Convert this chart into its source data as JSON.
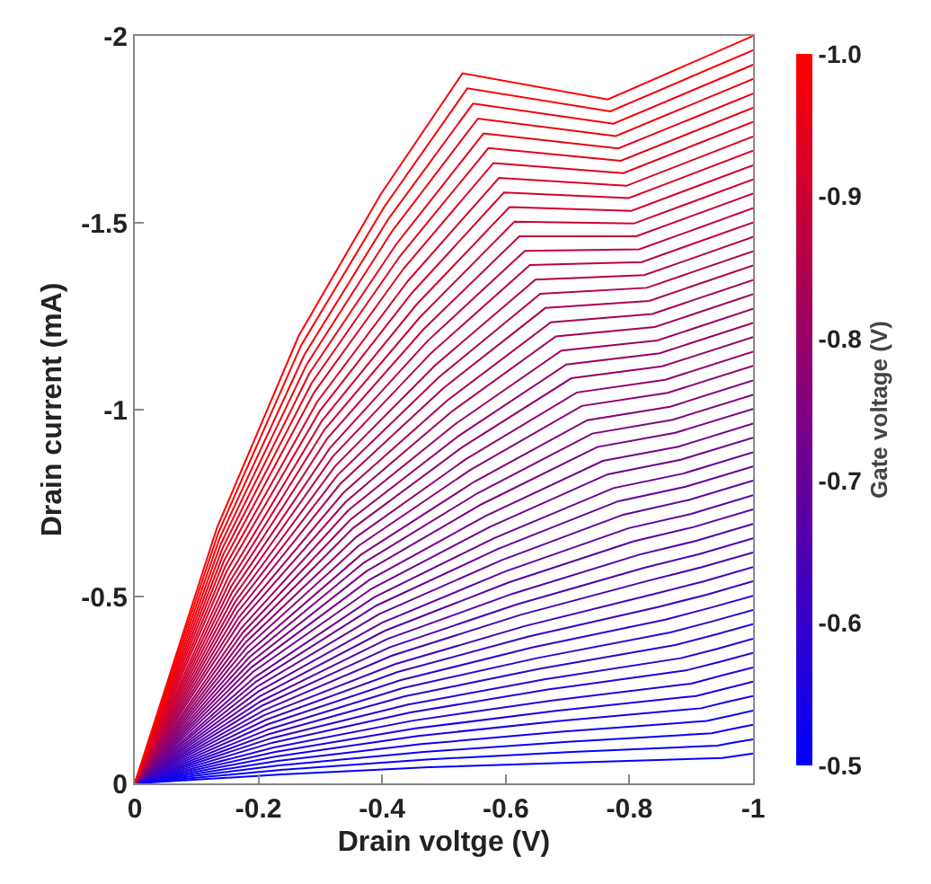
{
  "chart_data": {
    "type": "line",
    "xlabel": "Drain voltge (V)",
    "ylabel": "Drain current (mA)",
    "clabel": "Gate voltage (V)",
    "xlim": [
      0,
      -1
    ],
    "xticks": [
      0,
      -0.2,
      -0.4,
      -0.6,
      -0.8,
      -1
    ],
    "ylim": [
      0,
      -2
    ],
    "yticks": [
      0,
      -0.5,
      -1,
      -1.5,
      -2
    ],
    "marker": "none",
    "line_style": "solid",
    "clim": [
      -0.5,
      -1.0
    ],
    "cticks": [
      {
        "value": -1.0,
        "label": "-1.0"
      },
      {
        "value": -0.9,
        "label": "-0.9"
      },
      {
        "value": -0.8,
        "label": "-0.8"
      },
      {
        "value": -0.7,
        "label": "-0.7"
      },
      {
        "value": -0.6,
        "label": "-0.6"
      },
      {
        "value": -0.5,
        "label": "-0.5"
      }
    ],
    "series": [
      {
        "color": "#0000ff",
        "x": [
          0,
          -0.238,
          -0.475,
          -0.713,
          -0.95,
          -0.975,
          -1
        ],
        "values": [
          0,
          -0.024,
          -0.043,
          -0.056,
          -0.068,
          -0.074,
          -0.08
        ]
      },
      {
        "color": "#0500fa",
        "x": [
          0,
          -0.236,
          -0.471,
          -0.707,
          -0.942,
          -0.971,
          -1
        ],
        "values": [
          0,
          -0.036,
          -0.064,
          -0.084,
          -0.101,
          -0.11,
          -0.118
        ]
      },
      {
        "color": "#0a00f5",
        "x": [
          0,
          -0.233,
          -0.467,
          -0.7,
          -0.933,
          -0.967,
          -1
        ],
        "values": [
          0,
          -0.048,
          -0.084,
          -0.111,
          -0.134,
          -0.146,
          -0.157
        ]
      },
      {
        "color": "#0f00f0",
        "x": [
          0,
          -0.231,
          -0.463,
          -0.694,
          -0.925,
          -0.963,
          -1
        ],
        "values": [
          0,
          -0.06,
          -0.105,
          -0.139,
          -0.167,
          -0.181,
          -0.195
        ]
      },
      {
        "color": "#1400eb",
        "x": [
          0,
          -0.229,
          -0.458,
          -0.687,
          -0.916,
          -0.958,
          -1
        ],
        "values": [
          0,
          -0.072,
          -0.127,
          -0.167,
          -0.201,
          -0.218,
          -0.234
        ]
      },
      {
        "color": "#1a00e5",
        "x": [
          0,
          -0.227,
          -0.454,
          -0.681,
          -0.908,
          -0.954,
          -1
        ],
        "values": [
          0,
          -0.084,
          -0.147,
          -0.194,
          -0.234,
          -0.253,
          -0.272
        ]
      },
      {
        "color": "#1f00e0",
        "x": [
          0,
          -0.225,
          -0.45,
          -0.675,
          -0.9,
          -0.95,
          -1
        ],
        "values": [
          0,
          -0.096,
          -0.168,
          -0.222,
          -0.267,
          -0.289,
          -0.31
        ]
      },
      {
        "color": "#2400db",
        "x": [
          0,
          -0.223,
          -0.446,
          -0.668,
          -0.891,
          -0.946,
          -1
        ],
        "values": [
          0,
          -0.109,
          -0.19,
          -0.251,
          -0.302,
          -0.325,
          -0.349
        ]
      },
      {
        "color": "#2900d6",
        "x": [
          0,
          -0.221,
          -0.442,
          -0.662,
          -0.883,
          -0.942,
          -1
        ],
        "values": [
          0,
          -0.121,
          -0.211,
          -0.278,
          -0.335,
          -0.36,
          -0.387
        ]
      },
      {
        "color": "#2e00d1",
        "x": [
          0,
          -0.219,
          -0.437,
          -0.656,
          -0.874,
          -0.937,
          -1
        ],
        "values": [
          0,
          -0.133,
          -0.233,
          -0.307,
          -0.37,
          -0.397,
          -0.426
        ]
      },
      {
        "color": "#3300cc",
        "x": [
          0,
          -0.217,
          -0.433,
          -0.65,
          -0.866,
          -0.933,
          -1
        ],
        "values": [
          0,
          -0.145,
          -0.255,
          -0.335,
          -0.404,
          -0.433,
          -0.464
        ]
      },
      {
        "color": "#3800c7",
        "x": [
          0,
          -0.215,
          -0.429,
          -0.644,
          -0.858,
          -0.929,
          -1
        ],
        "values": [
          0,
          -0.158,
          -0.276,
          -0.364,
          -0.438,
          -0.469,
          -0.502
        ]
      },
      {
        "color": "#3d00c2",
        "x": [
          0,
          -0.212,
          -0.425,
          -0.637,
          -0.849,
          -0.925,
          -1
        ],
        "values": [
          0,
          -0.17,
          -0.298,
          -0.393,
          -0.473,
          -0.505,
          -0.541
        ]
      },
      {
        "color": "#4200bd",
        "x": [
          0,
          -0.21,
          -0.421,
          -0.631,
          -0.841,
          -0.921,
          -1
        ],
        "values": [
          0,
          -0.183,
          -0.319,
          -0.421,
          -0.507,
          -0.541,
          -0.579
        ]
      },
      {
        "color": "#4700b8",
        "x": [
          0,
          -0.208,
          -0.416,
          -0.624,
          -0.832,
          -0.916,
          -1
        ],
        "values": [
          0,
          -0.195,
          -0.342,
          -0.451,
          -0.543,
          -0.578,
          -0.618
        ]
      },
      {
        "color": "#4d00b2",
        "x": [
          0,
          -0.206,
          -0.412,
          -0.618,
          -0.824,
          -0.912,
          -1
        ],
        "values": [
          0,
          -0.208,
          -0.364,
          -0.479,
          -0.577,
          -0.613,
          -0.656
        ]
      },
      {
        "color": "#5200ad",
        "x": [
          0,
          -0.204,
          -0.408,
          -0.612,
          -0.816,
          -0.908,
          -1
        ],
        "values": [
          0,
          -0.22,
          -0.386,
          -0.508,
          -0.612,
          -0.649,
          -0.694
        ]
      },
      {
        "color": "#5700a8",
        "x": [
          0,
          -0.202,
          -0.404,
          -0.605,
          -0.807,
          -0.904,
          -1
        ],
        "values": [
          0,
          -0.233,
          -0.408,
          -0.538,
          -0.648,
          -0.686,
          -0.733
        ]
      },
      {
        "color": "#5c00a3",
        "x": [
          0,
          -0.2,
          -0.4,
          -0.599,
          -0.799,
          -0.9,
          -1
        ],
        "values": [
          0,
          -0.246,
          -0.43,
          -0.567,
          -0.683,
          -0.721,
          -0.771
        ]
      },
      {
        "color": "#61009e",
        "x": [
          0,
          -0.198,
          -0.395,
          -0.593,
          -0.79,
          -0.895,
          -1
        ],
        "values": [
          0,
          -0.259,
          -0.453,
          -0.597,
          -0.719,
          -0.758,
          -0.81
        ]
      },
      {
        "color": "#660099",
        "x": [
          0,
          -0.196,
          -0.391,
          -0.587,
          -0.782,
          -0.891,
          -1
        ],
        "values": [
          0,
          -0.272,
          -0.476,
          -0.627,
          -0.755,
          -0.794,
          -0.848
        ]
      },
      {
        "color": "#6b0094",
        "x": [
          0,
          -0.194,
          -0.387,
          -0.581,
          -0.774,
          -0.887,
          -1
        ],
        "values": [
          0,
          -0.284,
          -0.498,
          -0.656,
          -0.79,
          -0.829,
          -0.886
        ]
      },
      {
        "color": "#70008f",
        "x": [
          0,
          -0.191,
          -0.383,
          -0.574,
          -0.765,
          -0.883,
          -1
        ],
        "values": [
          0,
          -0.298,
          -0.521,
          -0.686,
          -0.827,
          -0.866,
          -0.925
        ]
      },
      {
        "color": "#75008a",
        "x": [
          0,
          -0.189,
          -0.379,
          -0.568,
          -0.757,
          -0.879,
          -1
        ],
        "values": [
          0,
          -0.311,
          -0.544,
          -0.716,
          -0.863,
          -0.901,
          -0.963
        ]
      },
      {
        "color": "#7a0085",
        "x": [
          0,
          -0.187,
          -0.374,
          -0.561,
          -0.748,
          -0.874,
          -1
        ],
        "values": [
          0,
          -0.324,
          -0.567,
          -0.747,
          -0.9,
          -0.938,
          -1.002
        ]
      },
      {
        "color": "#80007f",
        "x": [
          0,
          -0.185,
          -0.37,
          -0.555,
          -0.74,
          -0.87,
          -1
        ],
        "values": [
          0,
          -0.337,
          -0.59,
          -0.777,
          -0.936,
          -0.973,
          -1.04
        ]
      },
      {
        "color": "#85007a",
        "x": [
          0,
          -0.183,
          -0.366,
          -0.549,
          -0.732,
          -0.866,
          -1
        ],
        "values": [
          0,
          -0.35,
          -0.612,
          -0.807,
          -0.972,
          -1.008,
          -1.078
        ]
      },
      {
        "color": "#8a0075",
        "x": [
          0,
          -0.181,
          -0.362,
          -0.542,
          -0.723,
          -0.862,
          -1
        ],
        "values": [
          0,
          -0.364,
          -0.636,
          -0.838,
          -1.01,
          -1.045,
          -1.117
        ]
      },
      {
        "color": "#8f0070",
        "x": [
          0,
          -0.179,
          -0.358,
          -0.536,
          -0.715,
          -0.858,
          -1
        ],
        "values": [
          0,
          -0.377,
          -0.659,
          -0.868,
          -1.046,
          -1.08,
          -1.155
        ]
      },
      {
        "color": "#94006b",
        "x": [
          0,
          -0.177,
          -0.353,
          -0.53,
          -0.706,
          -0.853,
          -1
        ],
        "values": [
          0,
          -0.39,
          -0.683,
          -0.9,
          -1.084,
          -1.116,
          -1.194
        ]
      },
      {
        "color": "#990066",
        "x": [
          0,
          -0.175,
          -0.349,
          -0.524,
          -0.698,
          -0.849,
          -1
        ],
        "values": [
          0,
          -0.404,
          -0.706,
          -0.93,
          -1.121,
          -1.151,
          -1.232
        ]
      },
      {
        "color": "#9e0061",
        "x": [
          0,
          -0.173,
          -0.345,
          -0.518,
          -0.69,
          -0.845,
          -1
        ],
        "values": [
          0,
          -0.417,
          -0.73,
          -0.961,
          -1.158,
          -1.185,
          -1.27
        ]
      },
      {
        "color": "#a3005c",
        "x": [
          0,
          -0.17,
          -0.341,
          -0.511,
          -0.681,
          -0.841,
          -1
        ],
        "values": [
          0,
          -0.431,
          -0.753,
          -0.993,
          -1.196,
          -1.221,
          -1.309
        ]
      },
      {
        "color": "#a80057",
        "x": [
          0,
          -0.168,
          -0.337,
          -0.505,
          -0.673,
          -0.837,
          -1
        ],
        "values": [
          0,
          -0.444,
          -0.777,
          -1.024,
          -1.234,
          -1.256,
          -1.347
        ]
      },
      {
        "color": "#ad0052",
        "x": [
          0,
          -0.166,
          -0.332,
          -0.498,
          -0.664,
          -0.832,
          -1
        ],
        "values": [
          0,
          -0.458,
          -0.801,
          -1.056,
          -1.272,
          -1.291,
          -1.386
        ]
      },
      {
        "color": "#b3004c",
        "x": [
          0,
          -0.164,
          -0.328,
          -0.492,
          -0.656,
          -0.828,
          -1
        ],
        "values": [
          0,
          -0.472,
          -0.825,
          -1.087,
          -1.31,
          -1.326,
          -1.424
        ]
      },
      {
        "color": "#b80047",
        "x": [
          0,
          -0.162,
          -0.324,
          -0.486,
          -0.648,
          -0.824,
          -1
        ],
        "values": [
          0,
          -0.485,
          -0.849,
          -1.119,
          -1.348,
          -1.36,
          -1.462
        ]
      },
      {
        "color": "#bd0042",
        "x": [
          0,
          -0.16,
          -0.32,
          -0.479,
          -0.639,
          -0.82,
          -1
        ],
        "values": [
          0,
          -0.499,
          -0.874,
          -1.151,
          -1.387,
          -1.395,
          -1.501
        ]
      },
      {
        "color": "#c2003d",
        "x": [
          0,
          -0.158,
          -0.316,
          -0.473,
          -0.631,
          -0.816,
          -1
        ],
        "values": [
          0,
          -0.513,
          -0.898,
          -1.183,
          -1.425,
          -1.429,
          -1.539
        ]
      },
      {
        "color": "#c70038",
        "x": [
          0,
          -0.156,
          -0.311,
          -0.467,
          -0.622,
          -0.811,
          -1
        ],
        "values": [
          0,
          -0.527,
          -0.922,
          -1.215,
          -1.464,
          -1.464,
          -1.578
        ]
      },
      {
        "color": "#cc0033",
        "x": [
          0,
          -0.154,
          -0.307,
          -0.461,
          -0.614,
          -0.807,
          -1
        ],
        "values": [
          0,
          -0.541,
          -0.947,
          -1.247,
          -1.503,
          -1.498,
          -1.616
        ]
      },
      {
        "color": "#d1002e",
        "x": [
          0,
          -0.152,
          -0.303,
          -0.455,
          -0.606,
          -0.803,
          -1
        ],
        "values": [
          0,
          -0.555,
          -0.971,
          -1.28,
          -1.542,
          -1.532,
          -1.654
        ]
      },
      {
        "color": "#d60029",
        "x": [
          0,
          -0.149,
          -0.299,
          -0.448,
          -0.597,
          -0.799,
          -1
        ],
        "values": [
          0,
          -0.569,
          -0.996,
          -1.312,
          -1.581,
          -1.566,
          -1.693
        ]
      },
      {
        "color": "#db0024",
        "x": [
          0,
          -0.147,
          -0.295,
          -0.442,
          -0.589,
          -0.795,
          -1
        ],
        "values": [
          0,
          -0.583,
          -1.021,
          -1.345,
          -1.62,
          -1.599,
          -1.731
        ]
      },
      {
        "color": "#e0001f",
        "x": [
          0,
          -0.145,
          -0.29,
          -0.435,
          -0.58,
          -0.79,
          -1
        ],
        "values": [
          0,
          -0.598,
          -1.046,
          -1.378,
          -1.66,
          -1.633,
          -1.77
        ]
      },
      {
        "color": "#e60019",
        "x": [
          0,
          -0.143,
          -0.286,
          -0.429,
          -0.572,
          -0.786,
          -1
        ],
        "values": [
          0,
          -0.612,
          -1.071,
          -1.411,
          -1.7,
          -1.666,
          -1.808
        ]
      },
      {
        "color": "#eb0014",
        "x": [
          0,
          -0.141,
          -0.282,
          -0.423,
          -0.564,
          -0.782,
          -1
        ],
        "values": [
          0,
          -0.626,
          -1.096,
          -1.443,
          -1.739,
          -1.699,
          -1.846
        ]
      },
      {
        "color": "#f0000f",
        "x": [
          0,
          -0.139,
          -0.278,
          -0.416,
          -0.555,
          -0.778,
          -1
        ],
        "values": [
          0,
          -0.64,
          -1.121,
          -1.477,
          -1.779,
          -1.732,
          -1.885
        ]
      },
      {
        "color": "#f5000a",
        "x": [
          0,
          -0.137,
          -0.274,
          -0.41,
          -0.547,
          -0.774,
          -1
        ],
        "values": [
          0,
          -0.655,
          -1.146,
          -1.51,
          -1.819,
          -1.765,
          -1.923
        ]
      },
      {
        "color": "#fa0005",
        "x": [
          0,
          -0.135,
          -0.269,
          -0.404,
          -0.538,
          -0.769,
          -1
        ],
        "values": [
          0,
          -0.67,
          -1.172,
          -1.544,
          -1.86,
          -1.798,
          -1.962
        ]
      },
      {
        "color": "#ff0000",
        "x": [
          0,
          -0.133,
          -0.265,
          -0.398,
          -0.53,
          -0.765,
          -1
        ],
        "values": [
          0,
          -0.684,
          -1.197,
          -1.577,
          -1.9,
          -1.83,
          -2.0
        ]
      }
    ]
  }
}
